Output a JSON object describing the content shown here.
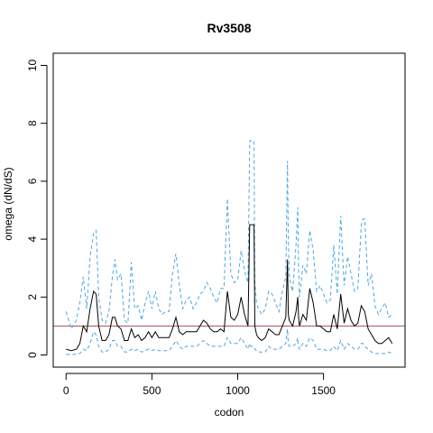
{
  "chart_data": {
    "type": "line",
    "title": "Rv3508",
    "xlabel": "codon",
    "ylabel": "omega (dN/dS)",
    "xlim": [
      -75,
      1975
    ],
    "ylim": [
      -0.42,
      10.42
    ],
    "xticks": [
      0,
      500,
      1000,
      1500
    ],
    "yticks": [
      0,
      2,
      4,
      6,
      8,
      10
    ],
    "reference_line": {
      "y": 1,
      "color": "#a05060"
    },
    "colors": {
      "estimate": "#000000",
      "interval": "#4aa8e0"
    },
    "grid": false,
    "legend": "none",
    "series": [
      {
        "role": "upper",
        "style": "dashed",
        "x": [
          0,
          30,
          60,
          80,
          100,
          120,
          140,
          160,
          175,
          190,
          210,
          230,
          250,
          270,
          285,
          300,
          320,
          340,
          360,
          380,
          400,
          420,
          440,
          460,
          480,
          500,
          520,
          540,
          560,
          580,
          600,
          620,
          640,
          660,
          680,
          700,
          720,
          740,
          760,
          780,
          800,
          820,
          840,
          860,
          880,
          900,
          920,
          940,
          960,
          980,
          1000,
          1020,
          1040,
          1060,
          1070,
          1075,
          1085,
          1095,
          1100,
          1110,
          1120,
          1140,
          1160,
          1180,
          1200,
          1220,
          1240,
          1260,
          1280,
          1290,
          1295,
          1300,
          1310,
          1320,
          1340,
          1350,
          1355,
          1360,
          1380,
          1400,
          1420,
          1440,
          1460,
          1480,
          1500,
          1520,
          1540,
          1560,
          1580,
          1600,
          1620,
          1640,
          1660,
          1680,
          1700,
          1720,
          1730,
          1740,
          1760,
          1780,
          1800,
          1820,
          1840,
          1860,
          1880,
          1900
        ],
        "y": [
          1.5,
          0.9,
          1.2,
          1.8,
          2.7,
          1.6,
          3.4,
          4.2,
          4.3,
          2.0,
          1.2,
          1.1,
          1.5,
          2.7,
          3.3,
          2.6,
          2.8,
          1.2,
          1.1,
          3.2,
          1.6,
          1.7,
          1.2,
          1.8,
          2.2,
          1.6,
          2.2,
          1.6,
          1.4,
          1.5,
          1.5,
          2.8,
          3.5,
          2.4,
          1.6,
          1.9,
          2.0,
          1.6,
          1.8,
          2.1,
          2.2,
          2.5,
          2.3,
          2.0,
          1.8,
          2.3,
          2.3,
          5.4,
          2.8,
          2.5,
          2.6,
          3.6,
          2.9,
          2.5,
          7.4,
          7.4,
          7.4,
          7.4,
          2.5,
          1.8,
          1.6,
          1.4,
          1.6,
          2.2,
          2.1,
          1.8,
          1.5,
          2.2,
          2.7,
          6.7,
          4.0,
          2.8,
          2.4,
          2.2,
          3.8,
          5.1,
          3.0,
          2.0,
          3.1,
          2.8,
          4.3,
          3.6,
          2.2,
          2.4,
          2.1,
          1.8,
          1.9,
          3.8,
          2.1,
          4.8,
          2.4,
          3.4,
          2.8,
          2.2,
          2.3,
          4.5,
          4.7,
          4.7,
          2.4,
          2.8,
          1.7,
          1.4,
          1.6,
          1.8,
          1.3,
          1.4
        ]
      },
      {
        "role": "estimate",
        "style": "solid",
        "x": [
          0,
          30,
          60,
          80,
          100,
          120,
          140,
          160,
          175,
          190,
          210,
          230,
          250,
          270,
          285,
          300,
          320,
          340,
          360,
          380,
          400,
          420,
          440,
          460,
          480,
          500,
          520,
          540,
          560,
          580,
          600,
          620,
          640,
          660,
          680,
          700,
          720,
          740,
          760,
          780,
          800,
          820,
          840,
          860,
          880,
          900,
          920,
          940,
          960,
          980,
          1000,
          1020,
          1040,
          1060,
          1070,
          1075,
          1085,
          1095,
          1100,
          1110,
          1120,
          1140,
          1160,
          1180,
          1200,
          1220,
          1240,
          1260,
          1280,
          1290,
          1295,
          1300,
          1310,
          1320,
          1340,
          1350,
          1355,
          1360,
          1380,
          1400,
          1420,
          1440,
          1460,
          1480,
          1500,
          1520,
          1540,
          1560,
          1580,
          1600,
          1620,
          1640,
          1660,
          1680,
          1700,
          1720,
          1730,
          1740,
          1760,
          1780,
          1800,
          1820,
          1840,
          1860,
          1880,
          1900
        ],
        "y": [
          0.2,
          0.15,
          0.2,
          0.4,
          1.0,
          0.8,
          1.6,
          2.2,
          2.1,
          1.0,
          0.5,
          0.5,
          0.7,
          1.3,
          1.3,
          1.0,
          0.9,
          0.5,
          0.5,
          0.9,
          0.6,
          0.7,
          0.5,
          0.6,
          0.8,
          0.6,
          0.8,
          0.6,
          0.6,
          0.6,
          0.6,
          0.9,
          1.3,
          0.8,
          0.7,
          0.8,
          0.8,
          0.8,
          0.8,
          1.0,
          1.2,
          1.1,
          0.9,
          0.8,
          0.8,
          0.9,
          0.8,
          2.2,
          1.3,
          1.2,
          1.4,
          2.0,
          1.4,
          1.0,
          4.5,
          4.5,
          4.5,
          4.5,
          1.0,
          0.7,
          0.6,
          0.5,
          0.6,
          0.9,
          0.8,
          0.7,
          0.7,
          1.0,
          1.3,
          3.3,
          1.4,
          1.2,
          1.1,
          1.0,
          1.5,
          2.0,
          1.3,
          1.0,
          1.4,
          1.2,
          2.3,
          1.8,
          1.0,
          1.0,
          0.9,
          0.8,
          0.8,
          1.4,
          0.9,
          2.1,
          1.1,
          1.6,
          1.2,
          1.0,
          1.1,
          1.7,
          1.6,
          1.5,
          0.9,
          0.7,
          0.5,
          0.4,
          0.4,
          0.5,
          0.6,
          0.4
        ]
      },
      {
        "role": "lower",
        "style": "dashed",
        "x": [
          0,
          30,
          60,
          80,
          100,
          120,
          140,
          160,
          175,
          190,
          210,
          230,
          250,
          270,
          285,
          300,
          320,
          340,
          360,
          380,
          400,
          420,
          440,
          460,
          480,
          500,
          520,
          540,
          560,
          580,
          600,
          620,
          640,
          660,
          680,
          700,
          720,
          740,
          760,
          780,
          800,
          820,
          840,
          860,
          880,
          900,
          920,
          940,
          960,
          980,
          1000,
          1020,
          1040,
          1060,
          1070,
          1075,
          1085,
          1095,
          1100,
          1110,
          1120,
          1140,
          1160,
          1180,
          1200,
          1220,
          1240,
          1260,
          1280,
          1290,
          1295,
          1300,
          1310,
          1320,
          1340,
          1350,
          1355,
          1360,
          1380,
          1400,
          1420,
          1440,
          1460,
          1480,
          1500,
          1520,
          1540,
          1560,
          1580,
          1600,
          1620,
          1640,
          1660,
          1680,
          1700,
          1720,
          1730,
          1740,
          1760,
          1780,
          1800,
          1820,
          1840,
          1860,
          1880,
          1900
        ],
        "y": [
          0.02,
          0.02,
          0.02,
          0.05,
          0.2,
          0.15,
          0.4,
          0.8,
          0.7,
          0.3,
          0.1,
          0.1,
          0.2,
          0.5,
          0.5,
          0.3,
          0.3,
          0.1,
          0.1,
          0.2,
          0.15,
          0.2,
          0.1,
          0.15,
          0.2,
          0.15,
          0.2,
          0.15,
          0.15,
          0.15,
          0.15,
          0.3,
          0.5,
          0.3,
          0.2,
          0.3,
          0.3,
          0.3,
          0.3,
          0.4,
          0.5,
          0.4,
          0.3,
          0.3,
          0.3,
          0.3,
          0.3,
          0.6,
          0.4,
          0.4,
          0.4,
          0.6,
          0.4,
          0.2,
          0.4,
          0.3,
          0.3,
          0.3,
          0.2,
          0.15,
          0.1,
          0.1,
          0.1,
          0.3,
          0.2,
          0.2,
          0.2,
          0.3,
          0.4,
          0.9,
          0.4,
          0.3,
          0.3,
          0.3,
          0.4,
          0.6,
          0.3,
          0.2,
          0.4,
          0.3,
          0.6,
          0.5,
          0.2,
          0.2,
          0.2,
          0.15,
          0.15,
          0.3,
          0.15,
          0.5,
          0.2,
          0.4,
          0.3,
          0.2,
          0.2,
          0.4,
          0.4,
          0.3,
          0.2,
          0.1,
          0.05,
          0.05,
          0.05,
          0.05,
          0.1,
          0.05
        ]
      }
    ]
  }
}
